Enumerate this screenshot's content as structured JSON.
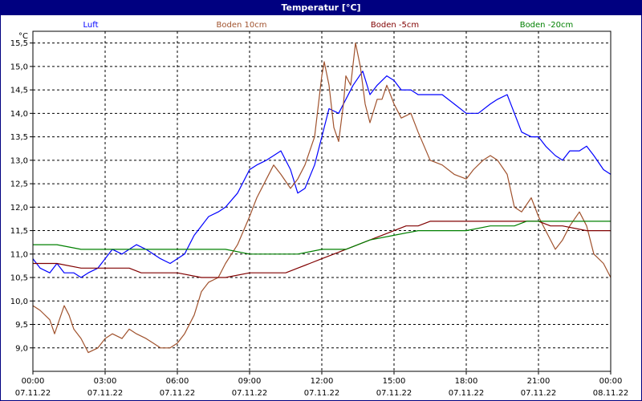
{
  "title": "Temperatur [°C]",
  "chart_data": {
    "type": "line",
    "title": "Temperatur [°C]",
    "ylabel": "°C",
    "ylim": [
      8.5,
      15.75
    ],
    "yticks": [
      9.0,
      9.5,
      10.0,
      10.5,
      11.0,
      11.5,
      12.0,
      12.5,
      13.0,
      13.5,
      14.0,
      14.5,
      15.0,
      15.5
    ],
    "ytick_labels": [
      "9,0",
      "9,5",
      "10,0",
      "10,5",
      "11,0",
      "11,5",
      "12,0",
      "12,5",
      "13,0",
      "13,5",
      "14,0",
      "14,5",
      "15,0",
      "15,5"
    ],
    "xlim": [
      0,
      24
    ],
    "xticks": [
      0,
      3,
      6,
      9,
      12,
      15,
      18,
      21,
      24
    ],
    "xtick_labels": [
      {
        "time": "00:00",
        "date": "07.11.22"
      },
      {
        "time": "03:00",
        "date": "07.11.22"
      },
      {
        "time": "06:00",
        "date": "07.11.22"
      },
      {
        "time": "09:00",
        "date": "07.11.22"
      },
      {
        "time": "12:00",
        "date": "07.11.22"
      },
      {
        "time": "15:00",
        "date": "07.11.22"
      },
      {
        "time": "18:00",
        "date": "07.11.22"
      },
      {
        "time": "21:00",
        "date": "07.11.22"
      },
      {
        "time": "00:00",
        "date": "08.11.22"
      }
    ],
    "grid": true,
    "legend_position": "top",
    "series": [
      {
        "name": "Luft",
        "color": "#0000ff",
        "x": [
          0,
          0.3,
          0.7,
          1.0,
          1.3,
          1.7,
          2.0,
          2.3,
          2.7,
          3.0,
          3.3,
          3.7,
          4.0,
          4.3,
          4.7,
          5.0,
          5.3,
          5.7,
          6.0,
          6.3,
          6.7,
          7.0,
          7.3,
          7.7,
          8.0,
          8.5,
          9.0,
          9.3,
          9.7,
          10.0,
          10.3,
          10.7,
          11.0,
          11.3,
          11.7,
          12.0,
          12.3,
          12.7,
          13.0,
          13.3,
          13.7,
          14.0,
          14.3,
          14.7,
          15.0,
          15.3,
          15.7,
          16.0,
          16.5,
          17.0,
          17.5,
          18.0,
          18.5,
          19.0,
          19.3,
          19.7,
          20.0,
          20.3,
          20.7,
          21.0,
          21.3,
          21.7,
          22.0,
          22.3,
          22.7,
          23.0,
          23.3,
          23.7,
          24.0
        ],
        "values": [
          10.9,
          10.7,
          10.6,
          10.8,
          10.6,
          10.6,
          10.5,
          10.6,
          10.7,
          10.9,
          11.1,
          11.0,
          11.1,
          11.2,
          11.1,
          11.0,
          10.9,
          10.8,
          10.9,
          11.0,
          11.4,
          11.6,
          11.8,
          11.9,
          12.0,
          12.3,
          12.8,
          12.9,
          13.0,
          13.1,
          13.2,
          12.8,
          12.3,
          12.4,
          12.9,
          13.5,
          14.1,
          14.0,
          14.3,
          14.6,
          14.9,
          14.4,
          14.6,
          14.8,
          14.7,
          14.5,
          14.5,
          14.4,
          14.4,
          14.4,
          14.2,
          14.0,
          14.0,
          14.2,
          14.3,
          14.4,
          14.0,
          13.6,
          13.5,
          13.5,
          13.3,
          13.1,
          13.0,
          13.2,
          13.2,
          13.3,
          13.1,
          12.8,
          12.7
        ]
      },
      {
        "name": "Boden 10cm",
        "color": "#a0522d",
        "x": [
          0,
          0.3,
          0.7,
          0.9,
          1.1,
          1.3,
          1.5,
          1.7,
          2.0,
          2.3,
          2.7,
          3.0,
          3.3,
          3.7,
          4.0,
          4.3,
          4.7,
          5.0,
          5.3,
          5.7,
          6.0,
          6.3,
          6.7,
          7.0,
          7.3,
          7.7,
          8.0,
          8.5,
          9.0,
          9.3,
          9.7,
          10.0,
          10.3,
          10.7,
          11.0,
          11.3,
          11.7,
          12.0,
          12.1,
          12.3,
          12.5,
          12.7,
          12.9,
          13.0,
          13.2,
          13.4,
          13.6,
          13.8,
          14.0,
          14.3,
          14.5,
          14.7,
          15.0,
          15.3,
          15.7,
          16.0,
          16.5,
          17.0,
          17.5,
          18.0,
          18.3,
          18.7,
          19.0,
          19.3,
          19.7,
          20.0,
          20.3,
          20.7,
          21.0,
          21.3,
          21.7,
          22.0,
          22.3,
          22.7,
          23.0,
          23.3,
          23.7,
          24.0
        ],
        "values": [
          9.9,
          9.8,
          9.6,
          9.3,
          9.6,
          9.9,
          9.7,
          9.4,
          9.2,
          8.9,
          9.0,
          9.2,
          9.3,
          9.2,
          9.4,
          9.3,
          9.2,
          9.1,
          9.0,
          9.0,
          9.1,
          9.3,
          9.7,
          10.2,
          10.4,
          10.5,
          10.8,
          11.2,
          11.8,
          12.2,
          12.6,
          12.9,
          12.7,
          12.4,
          12.6,
          12.9,
          13.5,
          14.8,
          15.1,
          14.6,
          13.7,
          13.4,
          14.2,
          14.8,
          14.6,
          15.5,
          15.0,
          14.2,
          13.8,
          14.3,
          14.3,
          14.6,
          14.2,
          13.9,
          14.0,
          13.6,
          13.0,
          12.9,
          12.7,
          12.6,
          12.8,
          13.0,
          13.1,
          13.0,
          12.7,
          12.0,
          11.9,
          12.2,
          11.8,
          11.5,
          11.1,
          11.3,
          11.6,
          11.9,
          11.6,
          11.0,
          10.8,
          10.5
        ]
      },
      {
        "name": "Boden -5cm",
        "color": "#800000",
        "x": [
          0,
          1.0,
          2.0,
          3.0,
          4.0,
          4.5,
          5.0,
          6.0,
          7.0,
          8.0,
          9.0,
          10.0,
          10.5,
          11.0,
          11.5,
          12.0,
          12.5,
          13.0,
          13.5,
          14.0,
          14.5,
          15.0,
          15.5,
          16.0,
          16.5,
          17.0,
          18.0,
          19.0,
          20.0,
          20.5,
          21.0,
          21.5,
          22.0,
          23.0,
          24.0
        ],
        "values": [
          10.8,
          10.8,
          10.7,
          10.7,
          10.7,
          10.6,
          10.6,
          10.6,
          10.5,
          10.5,
          10.6,
          10.6,
          10.6,
          10.7,
          10.8,
          10.9,
          11.0,
          11.1,
          11.2,
          11.3,
          11.4,
          11.5,
          11.6,
          11.6,
          11.7,
          11.7,
          11.7,
          11.7,
          11.7,
          11.7,
          11.7,
          11.6,
          11.6,
          11.5,
          11.5
        ]
      },
      {
        "name": "Boden -20cm",
        "color": "#008000",
        "x": [
          0,
          1.0,
          2.0,
          3.0,
          4.0,
          5.0,
          6.0,
          7.0,
          8.0,
          9.0,
          10.0,
          11.0,
          12.0,
          13.0,
          13.5,
          14.0,
          15.0,
          16.0,
          17.0,
          18.0,
          19.0,
          20.0,
          20.5,
          21.0,
          22.0,
          23.0,
          24.0
        ],
        "values": [
          11.2,
          11.2,
          11.1,
          11.1,
          11.1,
          11.1,
          11.1,
          11.1,
          11.1,
          11.0,
          11.0,
          11.0,
          11.1,
          11.1,
          11.2,
          11.3,
          11.4,
          11.5,
          11.5,
          11.5,
          11.6,
          11.6,
          11.7,
          11.7,
          11.7,
          11.7,
          11.7
        ]
      }
    ]
  }
}
